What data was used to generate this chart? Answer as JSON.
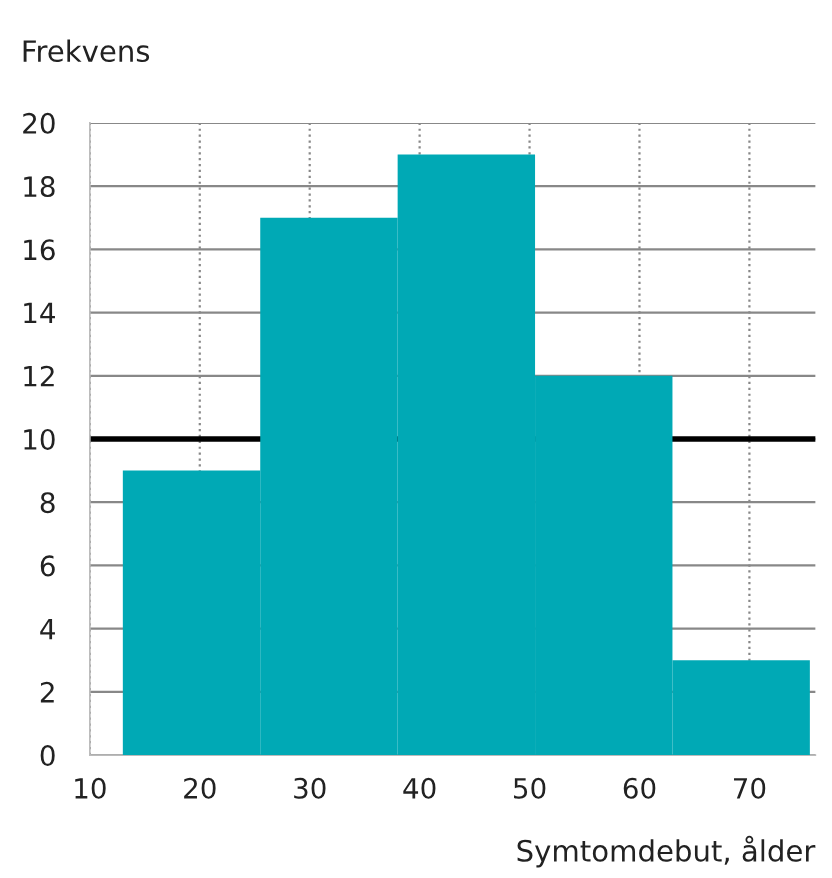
{
  "chart_data": {
    "type": "histogram",
    "ylabel": "Frekvens",
    "xlabel": "Symtomdebut, ålder",
    "bins": [
      13,
      25.5,
      38,
      50.5,
      63,
      75.5
    ],
    "values": [
      9,
      17,
      19,
      12,
      3
    ],
    "color": "#00a9b5",
    "xlim": [
      10,
      76
    ],
    "xticks": [
      10,
      20,
      30,
      40,
      50,
      60,
      70
    ],
    "ylim": [
      0,
      20
    ],
    "yticks": [
      0,
      2,
      4,
      6,
      8,
      10,
      12,
      14,
      16,
      18,
      20
    ],
    "grid": true,
    "ref_lines": [
      {
        "axis": "y",
        "value": 10,
        "color": "#000000",
        "line_style": "solid"
      }
    ]
  }
}
